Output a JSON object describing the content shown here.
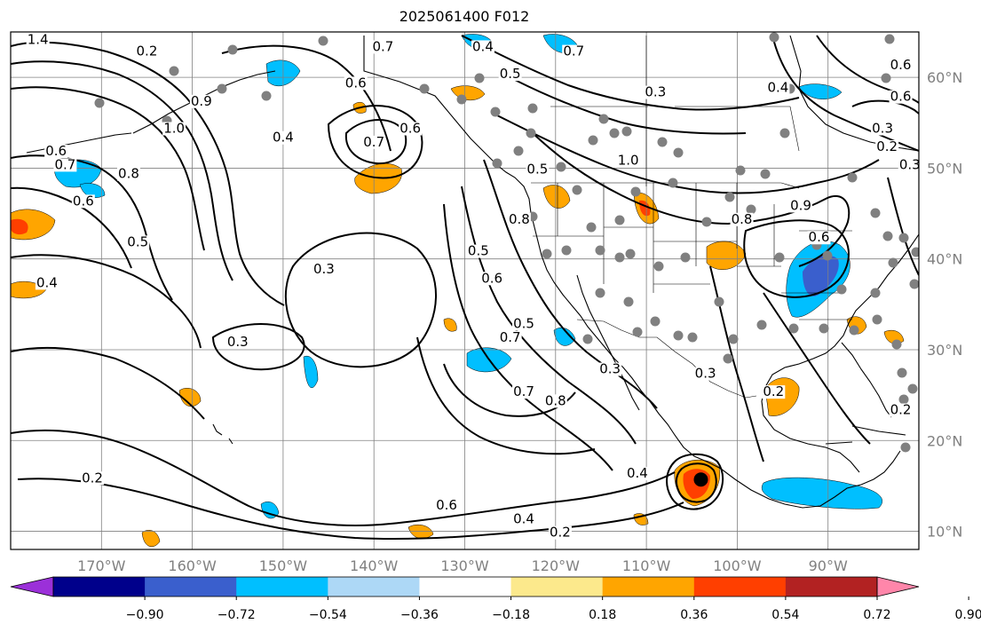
{
  "title": "2025061400 F012",
  "map": {
    "projection": "cylindrical",
    "lon_range": [
      -180,
      -80
    ],
    "lat_range": [
      8,
      65
    ],
    "gridlines": true,
    "lat_labels": [
      {
        "lat": 60,
        "label": "60°N"
      },
      {
        "lat": 50,
        "label": "50°N"
      },
      {
        "lat": 40,
        "label": "40°N"
      },
      {
        "lat": 30,
        "label": "30°N"
      },
      {
        "lat": 20,
        "label": "20°N"
      },
      {
        "lat": 10,
        "label": "10°N"
      }
    ],
    "lon_labels": [
      {
        "lon": -170,
        "label": "170°W"
      },
      {
        "lon": -160,
        "label": "160°W"
      },
      {
        "lon": -150,
        "label": "150°W"
      },
      {
        "lon": -140,
        "label": "140°W"
      },
      {
        "lon": -130,
        "label": "130°W"
      },
      {
        "lon": -120,
        "label": "120°W"
      },
      {
        "lon": -110,
        "label": "110°W"
      },
      {
        "lon": -100,
        "label": "100°W"
      },
      {
        "lon": -90,
        "label": "90°W"
      }
    ],
    "contour_labels": [
      {
        "lon": -177,
        "lat": 63.8,
        "text": "1.4"
      },
      {
        "lon": -165,
        "lat": 62.5,
        "text": "0.2"
      },
      {
        "lon": -159,
        "lat": 57,
        "text": "0.9"
      },
      {
        "lon": -162,
        "lat": 54,
        "text": "1.0"
      },
      {
        "lon": -175,
        "lat": 51.5,
        "text": "0.6"
      },
      {
        "lon": -174,
        "lat": 50,
        "text": "0.7"
      },
      {
        "lon": -167,
        "lat": 49,
        "text": "0.8"
      },
      {
        "lon": -172,
        "lat": 46,
        "text": "0.6"
      },
      {
        "lon": -166,
        "lat": 41.5,
        "text": "0.5"
      },
      {
        "lon": -176,
        "lat": 37,
        "text": "0.4"
      },
      {
        "lon": -150,
        "lat": 53,
        "text": "0.4"
      },
      {
        "lon": -140,
        "lat": 52.5,
        "text": "0.7"
      },
      {
        "lon": -136,
        "lat": 54,
        "text": "0.6"
      },
      {
        "lon": -142,
        "lat": 59,
        "text": "0.6"
      },
      {
        "lon": -145.5,
        "lat": 38.5,
        "text": "0.3"
      },
      {
        "lon": -155,
        "lat": 30.5,
        "text": "0.3"
      },
      {
        "lon": -171,
        "lat": 15.5,
        "text": "0.2"
      },
      {
        "lon": -139,
        "lat": 63,
        "text": "0.7"
      },
      {
        "lon": -125,
        "lat": 60,
        "text": "0.5"
      },
      {
        "lon": -128,
        "lat": 63,
        "text": "0.4"
      },
      {
        "lon": -118,
        "lat": 62.5,
        "text": "0.7"
      },
      {
        "lon": -109,
        "lat": 58,
        "text": "0.3"
      },
      {
        "lon": -95.5,
        "lat": 58.5,
        "text": "0.4"
      },
      {
        "lon": -122,
        "lat": 49.5,
        "text": "0.5"
      },
      {
        "lon": -112,
        "lat": 50.5,
        "text": "1.0"
      },
      {
        "lon": -124,
        "lat": 44,
        "text": "0.8"
      },
      {
        "lon": -128.5,
        "lat": 40.5,
        "text": "0.5"
      },
      {
        "lon": -127,
        "lat": 37.5,
        "text": "0.6"
      },
      {
        "lon": -125,
        "lat": 31,
        "text": "0.7"
      },
      {
        "lon": -123.5,
        "lat": 32.5,
        "text": "0.5"
      },
      {
        "lon": -123.5,
        "lat": 25,
        "text": "0.7"
      },
      {
        "lon": -120,
        "lat": 24,
        "text": "0.8"
      },
      {
        "lon": -114,
        "lat": 27.5,
        "text": "0.3"
      },
      {
        "lon": -99.5,
        "lat": 44,
        "text": "0.8"
      },
      {
        "lon": -93,
        "lat": 45.5,
        "text": "0.9"
      },
      {
        "lon": -91,
        "lat": 42,
        "text": "0.6"
      },
      {
        "lon": -103.5,
        "lat": 27,
        "text": "0.3"
      },
      {
        "lon": -96,
        "lat": 25,
        "text": "0.2"
      },
      {
        "lon": -132,
        "lat": 12.5,
        "text": "0.6"
      },
      {
        "lon": -123.5,
        "lat": 11,
        "text": "0.4"
      },
      {
        "lon": -119.5,
        "lat": 9.5,
        "text": "0.2"
      },
      {
        "lon": -111,
        "lat": 16,
        "text": "0.4"
      },
      {
        "lon": -82,
        "lat": 23,
        "text": "0.2"
      },
      {
        "lon": -82,
        "lat": 61,
        "text": "0.6"
      },
      {
        "lon": -82,
        "lat": 57.5,
        "text": "0.6"
      },
      {
        "lon": -83.5,
        "lat": 52,
        "text": "0.2"
      },
      {
        "lon": -81,
        "lat": 50,
        "text": "0.3"
      },
      {
        "lon": -84,
        "lat": 54,
        "text": "0.3"
      }
    ],
    "min_marker": {
      "lon": -104,
      "lat": 15.7
    }
  },
  "colorbar": {
    "colors": [
      "#9b30d9",
      "#00008b",
      "#3a5fcd",
      "#00bfff",
      "#add8f6",
      "#ffffff",
      "#fce98c",
      "#ffa500",
      "#ff3f00",
      "#b22222",
      "#ff86aa"
    ],
    "ticks": [
      "−0.90",
      "−0.72",
      "−0.54",
      "−0.36",
      "−0.18",
      "0.18",
      "0.36",
      "0.54",
      "0.72",
      "0.90"
    ]
  }
}
